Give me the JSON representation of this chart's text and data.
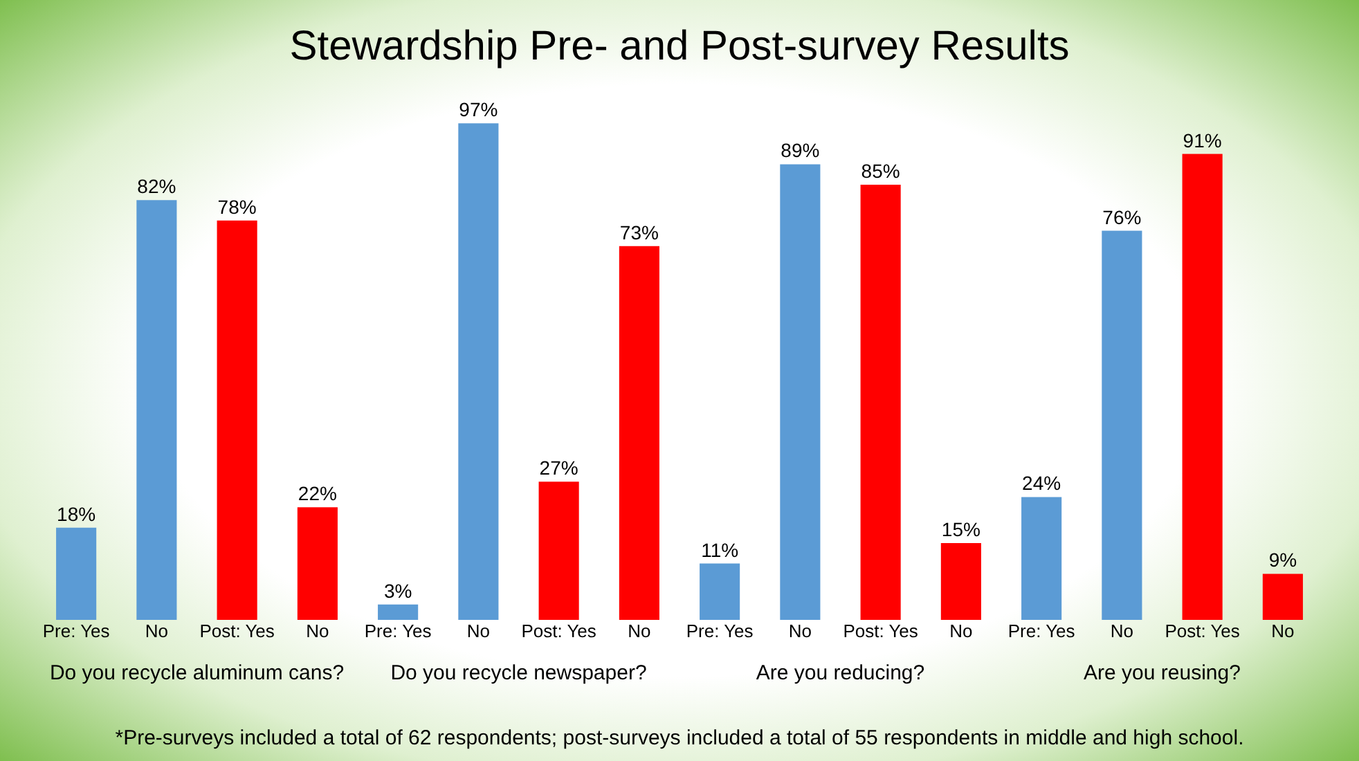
{
  "chart_data": {
    "type": "bar",
    "title": "Stewardship Pre- and Post-survey Results",
    "categories": [
      "Pre: Yes",
      "No",
      "Post: Yes",
      "No",
      "Pre: Yes",
      "No",
      "Post: Yes",
      "No",
      "Pre:  Yes",
      "No",
      "Post: Yes",
      "No",
      "Pre:  Yes",
      "No",
      "Post: Yes",
      "No"
    ],
    "values": [
      18,
      82,
      78,
      22,
      3,
      97,
      27,
      73,
      11,
      89,
      85,
      15,
      24,
      76,
      91,
      9
    ],
    "value_labels": [
      "18%",
      "82%",
      "78%",
      "22%",
      "3%",
      "97%",
      "27%",
      "73%",
      "11%",
      "89%",
      "85%",
      "15%",
      "24%",
      "76%",
      "91%",
      "9%"
    ],
    "colors": [
      "#5b9bd5",
      "#5b9bd5",
      "#ff0000",
      "#ff0000",
      "#5b9bd5",
      "#5b9bd5",
      "#ff0000",
      "#ff0000",
      "#5b9bd5",
      "#5b9bd5",
      "#ff0000",
      "#ff0000",
      "#5b9bd5",
      "#5b9bd5",
      "#ff0000",
      "#ff0000"
    ],
    "annotations": [
      "Do you recycle aluminum cans?",
      "Do you recycle newspaper?",
      "Are you reducing?",
      "Are you reusing?",
      "*Pre-surveys included a total of 62 respondents; post-surveys included a total of 55 respondents in middle and high school."
    ],
    "grid": false
  }
}
